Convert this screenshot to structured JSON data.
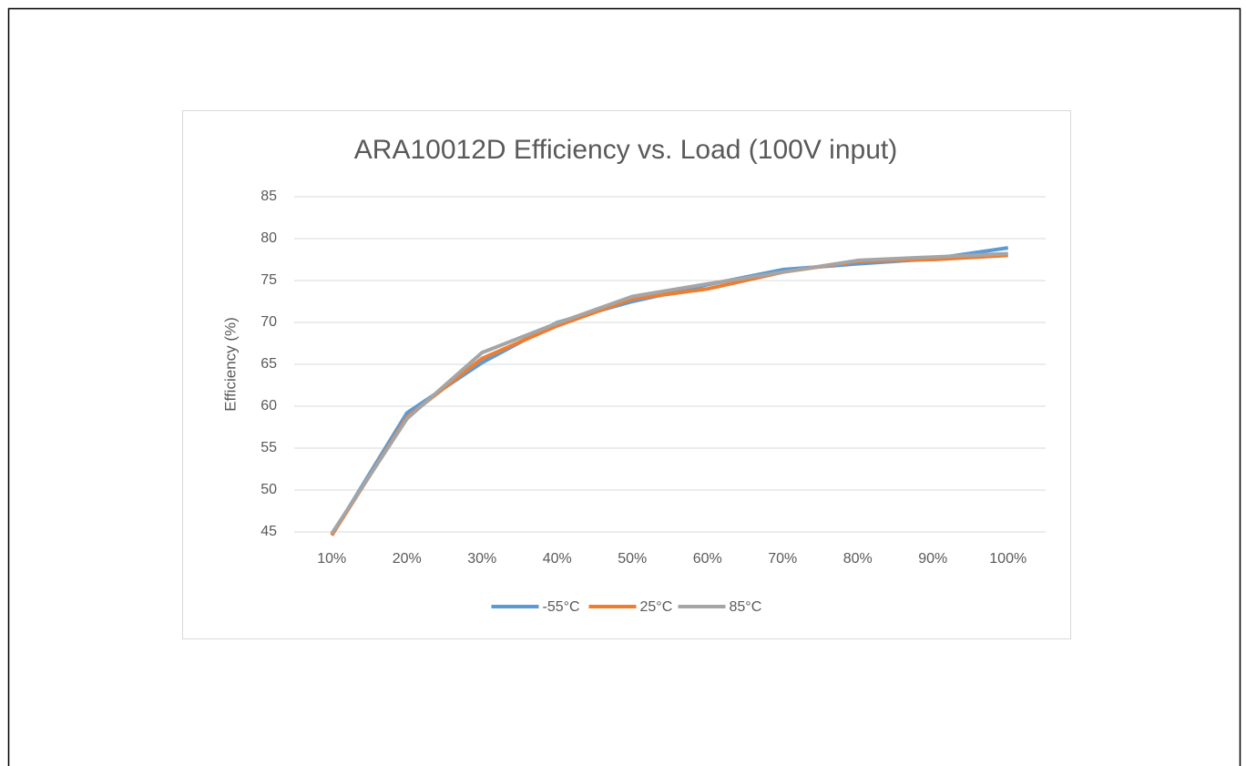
{
  "chart_data": {
    "type": "line",
    "title": "ARA10012D Efficiency vs. Load (100V input)",
    "y_label": "Efficiency (%)",
    "categories": [
      "10%",
      "20%",
      "30%",
      "40%",
      "50%",
      "60%",
      "70%",
      "80%",
      "90%",
      "100%"
    ],
    "series": [
      {
        "name": "-55°C",
        "color": "#5b9bd5",
        "values": [
          44.6,
          59.2,
          65.2,
          70.0,
          72.5,
          74.5,
          76.3,
          77.0,
          77.6,
          78.9
        ]
      },
      {
        "name": "25°C",
        "color": "#ed7d31",
        "values": [
          44.6,
          58.7,
          65.7,
          69.6,
          72.8,
          74.0,
          76.0,
          77.3,
          77.5,
          78.0
        ]
      },
      {
        "name": "85°C",
        "color": "#a5a5a5",
        "values": [
          44.8,
          58.5,
          66.4,
          69.9,
          73.1,
          74.6,
          76.0,
          77.4,
          77.8,
          78.2
        ]
      }
    ],
    "ylim": [
      45,
      85
    ],
    "yticks": [
      45,
      50,
      55,
      60,
      65,
      70,
      75,
      80,
      85
    ],
    "grid": true,
    "legend": "bottom"
  }
}
